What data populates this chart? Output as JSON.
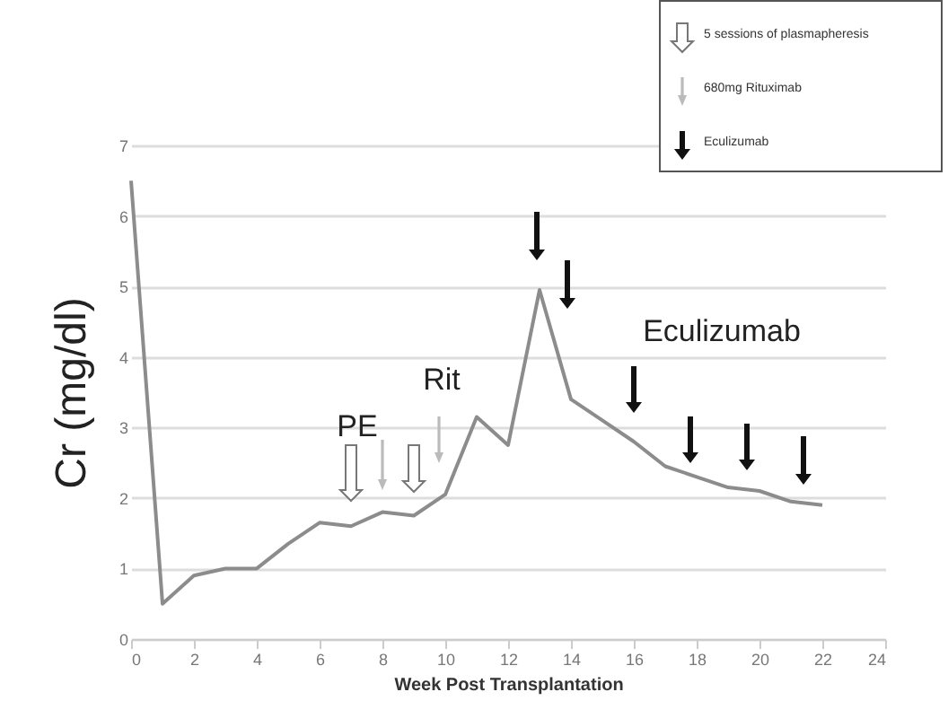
{
  "chart_data": {
    "type": "line",
    "xlabel": "Week Post Transplantation",
    "ylabel": "Cr (mg/dl)",
    "x": [
      0,
      1,
      2,
      3,
      4,
      5,
      6,
      7,
      8,
      9,
      10,
      11,
      12,
      13,
      14,
      15,
      16,
      17,
      18,
      19,
      20,
      21,
      22
    ],
    "series": [
      {
        "color": "#8c8c8c",
        "values": [
          6.5,
          0.5,
          0.9,
          1.0,
          1.0,
          1.35,
          1.65,
          1.6,
          1.8,
          1.75,
          2.05,
          3.15,
          2.75,
          4.95,
          3.4,
          3.1,
          2.8,
          2.45,
          2.3,
          2.15,
          2.1,
          1.95,
          1.9
        ]
      }
    ],
    "xlim": [
      0,
      24
    ],
    "xticks": [
      0,
      2,
      4,
      6,
      8,
      10,
      12,
      14,
      16,
      18,
      20,
      22,
      24
    ],
    "ylim": [
      0,
      7
    ],
    "yticks": [
      0,
      1,
      2,
      3,
      4,
      5,
      6,
      7
    ],
    "grid": "y",
    "marker": "none",
    "line_style": "solid",
    "annotations": [
      "PE",
      "Rit",
      "Eculizumab",
      "5 sessions of plasmapheresis",
      "680mg Rituximab",
      "Eculizumab"
    ]
  }
}
